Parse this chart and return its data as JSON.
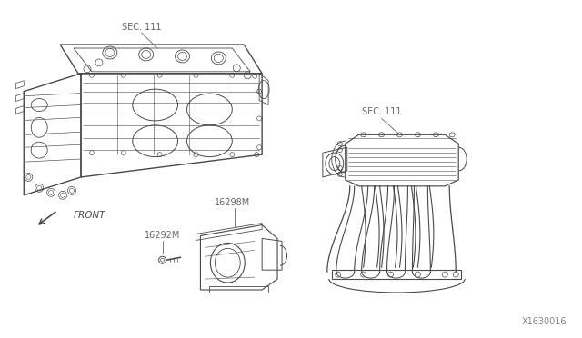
{
  "bg_color": "#ffffff",
  "line_color": "#4a4a4a",
  "text_color": "#4a4a4a",
  "label_color": "#666666",
  "fig_width": 6.4,
  "fig_height": 3.72,
  "dpi": 100,
  "watermark": "X1630016",
  "labels": {
    "sec111_top": "SEC. 111",
    "sec111_right": "SEC. 111",
    "front": "FRONT",
    "part1": "16298M",
    "part2": "16292M"
  }
}
